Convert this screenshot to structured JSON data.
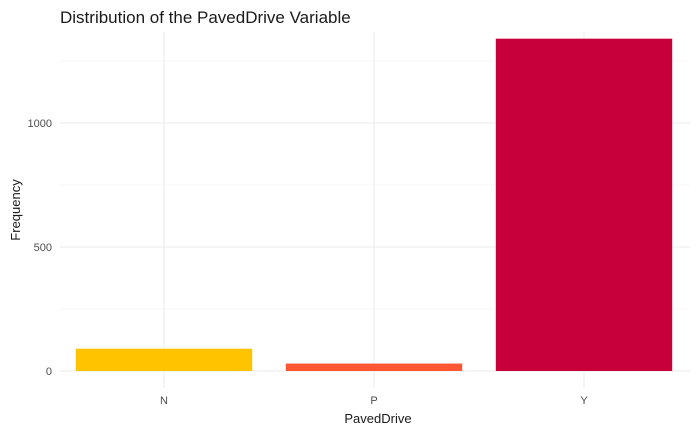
{
  "chart_data": {
    "type": "bar",
    "title": "Distribution of the PavedDrive Variable",
    "xlabel": "PavedDrive",
    "ylabel": "Frequency",
    "categories": [
      "N",
      "P",
      "Y"
    ],
    "values": [
      90,
      30,
      1340
    ],
    "colors": [
      "#ffc300",
      "#ff5733",
      "#c70039"
    ],
    "ylim": [
      0,
      1400
    ],
    "yticks": [
      0,
      500,
      1000
    ],
    "grid": true,
    "legend": "none"
  }
}
